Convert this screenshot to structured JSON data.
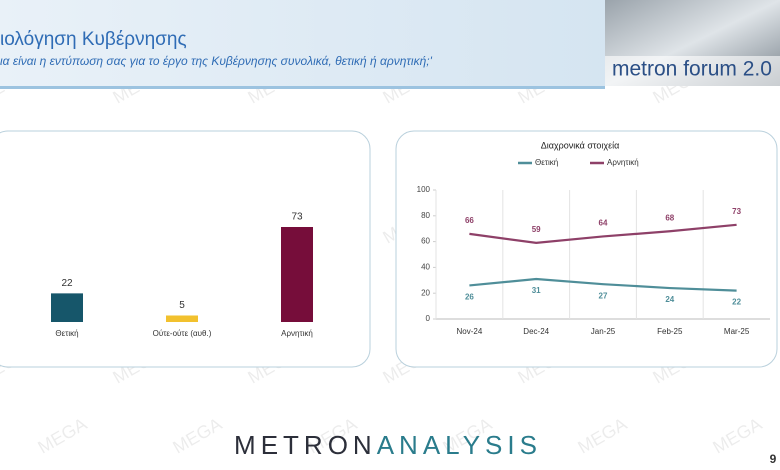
{
  "header": {
    "title": "ιολόγηση Κυβέρνησης",
    "subtitle": "ια είναι η εντύπωση σας για το έργο της Κυβέρνησης συνολικά, θετική ή αρνητική;'",
    "badge": "metron forum 2.0"
  },
  "watermark": "MEGA",
  "footer": {
    "brand_a": "METRON",
    "brand_b": "ANALYSIS",
    "page": "9"
  },
  "chart_data": [
    {
      "type": "bar",
      "categories": [
        "Θετική",
        "Ούτε-ούτε (αυθ.)",
        "Αρνητική"
      ],
      "values": [
        22,
        5,
        73
      ],
      "colors": [
        "#16566a",
        "#f2c12e",
        "#760d3a"
      ]
    },
    {
      "type": "line",
      "title": "Διαχρονικά στοιχεία",
      "categories": [
        "Nov-24",
        "Dec-24",
        "Jan-25",
        "Feb-25",
        "Mar-25"
      ],
      "series": [
        {
          "name": "Θετική",
          "color": "#4f8e99",
          "values": [
            26,
            31,
            27,
            24,
            22
          ]
        },
        {
          "name": "Αρνητική",
          "color": "#8e4068",
          "values": [
            66,
            59,
            64,
            68,
            73
          ]
        }
      ],
      "ylim": [
        0,
        100
      ],
      "yticks": [
        0,
        20,
        40,
        60,
        80,
        100
      ],
      "grid": "x"
    }
  ]
}
